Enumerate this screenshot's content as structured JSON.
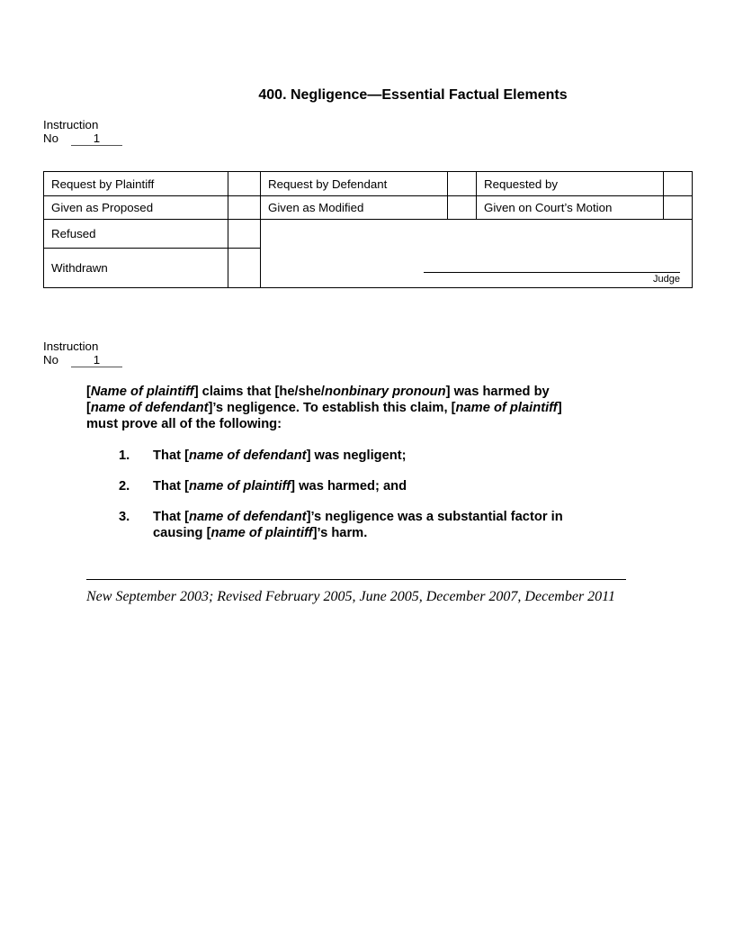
{
  "title": "400. Negligence—Essential Factual Elements",
  "instruction_block_1": {
    "line1": "Instruction",
    "no_label": "No",
    "number": "1"
  },
  "instruction_block_2": {
    "line1": "Instruction",
    "no_label": "No",
    "number": "1"
  },
  "table": {
    "row1": {
      "c1": "Request by Plaintiff",
      "c2": "Request by Defendant",
      "c3": "Requested by"
    },
    "row2": {
      "c1": "Given as Proposed",
      "c2": "Given as Modified",
      "c3": "Given on Court’s Motion"
    },
    "row3": {
      "c1": "Refused"
    },
    "row4": {
      "c1": "Withdrawn"
    },
    "judge_label": "Judge"
  },
  "body": {
    "paragraph": [
      {
        "text": "["
      },
      {
        "text": "Name of plaintiff",
        "italic": true
      },
      {
        "text": "] claims that [he/she/"
      },
      {
        "text": "nonbinary pronoun",
        "italic": true
      },
      {
        "text": "] was harmed by"
      },
      {
        "br": true
      },
      {
        "text": "["
      },
      {
        "text": "name of defendant",
        "italic": true
      },
      {
        "text": "]’s negligence. To establish this claim, ["
      },
      {
        "text": "name of plaintiff",
        "italic": true
      },
      {
        "text": "]"
      },
      {
        "br": true
      },
      {
        "text": "must prove all of the following:"
      }
    ],
    "list": [
      {
        "number": "1.",
        "segments": [
          {
            "text": "That ["
          },
          {
            "text": "name of defendant",
            "italic": true
          },
          {
            "text": "] was negligent;"
          }
        ]
      },
      {
        "number": "2.",
        "segments": [
          {
            "text": "That ["
          },
          {
            "text": "name of plaintiff",
            "italic": true
          },
          {
            "text": "] was harmed; and"
          }
        ]
      },
      {
        "number": "3.",
        "segments": [
          {
            "text": "That ["
          },
          {
            "text": "name of defendant",
            "italic": true
          },
          {
            "text": "]’s negligence was a substantial factor in"
          },
          {
            "br": true
          },
          {
            "text": "causing ["
          },
          {
            "text": "name of plaintiff",
            "italic": true
          },
          {
            "text": "]’s harm."
          }
        ]
      }
    ]
  },
  "footer": {
    "history": "New September 2003; Revised February 2005, June 2005, December 2007, December 2011"
  }
}
